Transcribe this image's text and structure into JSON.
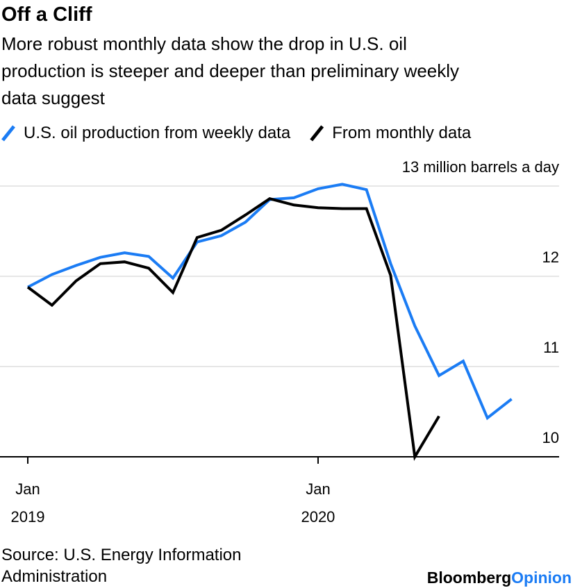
{
  "chart_data": {
    "type": "line",
    "title": "Off a Cliff",
    "subtitle": [
      "More robust monthly data show the drop in U.S. oil",
      "production is steeper and deeper than preliminary weekly",
      "data suggest"
    ],
    "categories": [
      "Jan 2019",
      null,
      null,
      null,
      null,
      null,
      null,
      null,
      null,
      null,
      null,
      null,
      "Jan 2020",
      null,
      null,
      null,
      null,
      null,
      null,
      null,
      null
    ],
    "series": [
      {
        "name": "U.S. oil production from weekly data",
        "color": "#1b7cf4",
        "values": [
          11.88,
          12.02,
          12.12,
          12.21,
          12.26,
          12.22,
          11.98,
          12.38,
          12.45,
          12.6,
          12.85,
          12.87,
          12.97,
          13.02,
          12.96,
          12.14,
          11.45,
          10.9,
          11.06,
          10.43,
          10.64
        ]
      },
      {
        "name": "From monthly data",
        "color": "#000000",
        "values": [
          11.88,
          11.68,
          11.95,
          12.14,
          12.16,
          12.09,
          11.82,
          12.43,
          12.51,
          12.68,
          12.86,
          12.79,
          12.76,
          12.75,
          12.75,
          12.01,
          10.0,
          10.45,
          null,
          null,
          null
        ]
      }
    ],
    "ylim": [
      10,
      13
    ],
    "yticks": [
      10,
      11,
      12,
      {
        "value": 13,
        "label": "13 million barrels a day"
      }
    ],
    "grid": true,
    "source": [
      "Source: U.S. Energy Information",
      "Administration"
    ],
    "logo": [
      "Bloomberg",
      "Opinion"
    ]
  }
}
